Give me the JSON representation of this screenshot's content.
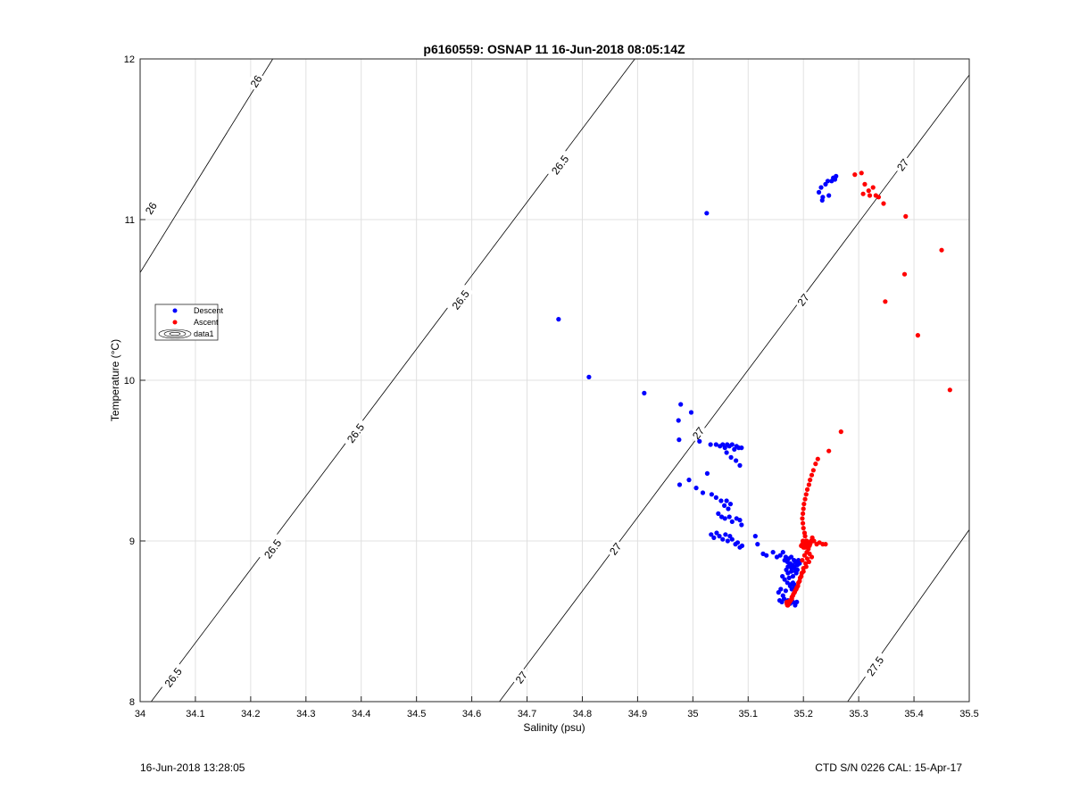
{
  "footer": {
    "timestamp": "16-Jun-2018 13:28:05",
    "serial_cal": "CTD S/N 0226  CAL: 15-Apr-17"
  },
  "chart_data": {
    "type": "scatter",
    "title": "p6160559: OSNAP 11 16-Jun-2018 08:05:14Z",
    "xlabel": "Salinity (psu)",
    "ylabel": "Temperature (°C)",
    "xlim": [
      34,
      35.5
    ],
    "ylim": [
      8,
      12
    ],
    "xticks": [
      34,
      34.1,
      34.2,
      34.3,
      34.4,
      34.5,
      34.6,
      34.7,
      34.8,
      34.9,
      35,
      35.1,
      35.2,
      35.3,
      35.4,
      35.5
    ],
    "yticks": [
      8,
      9,
      10,
      11,
      12
    ],
    "grid": true,
    "legend_position": "left-middle",
    "legend": [
      "Descent",
      "Ascent",
      "data1"
    ],
    "colors": {
      "descent": "#0000ff",
      "ascent": "#ff0000",
      "contour": "#000000",
      "grid": "#e0e0e0"
    },
    "series": [
      {
        "name": "Descent",
        "x": [
          35.025,
          34.757,
          34.812,
          34.912,
          34.978,
          34.974,
          34.997,
          34.975,
          35.012,
          35.032,
          35.042,
          35.049,
          35.054,
          35.058,
          35.062,
          35.066,
          35.071,
          35.075,
          35.079,
          35.083,
          35.088,
          35.061,
          35.069,
          35.078,
          35.085,
          34.976,
          34.993,
          35.026,
          35.006,
          35.018,
          35.034,
          35.042,
          35.051,
          35.057,
          35.061,
          35.064,
          35.068,
          35.046,
          35.052,
          35.058,
          35.066,
          35.071,
          35.079,
          35.085,
          35.088,
          35.033,
          35.038,
          35.043,
          35.048,
          35.054,
          35.059,
          35.063,
          35.067,
          35.071,
          35.077,
          35.081,
          35.085,
          35.089,
          35.113,
          35.117,
          35.127,
          35.133,
          35.145,
          35.152,
          35.158,
          35.163,
          35.166,
          35.168,
          35.171,
          35.173,
          35.176,
          35.178,
          35.181,
          35.183,
          35.186,
          35.189,
          35.191,
          35.193,
          35.169,
          35.172,
          35.175,
          35.178,
          35.181,
          35.184,
          35.187,
          35.162,
          35.166,
          35.171,
          35.174,
          35.178,
          35.155,
          35.159,
          35.163,
          35.168,
          35.157,
          35.161,
          35.165,
          35.172,
          35.176,
          35.181,
          35.185,
          35.188,
          35.172,
          35.175,
          35.179,
          35.182,
          35.186,
          35.189,
          35.176,
          35.179,
          35.183,
          35.181,
          35.184,
          35.232,
          35.228,
          35.235,
          35.24,
          35.246,
          35.251,
          35.254,
          35.257,
          35.234,
          35.244,
          35.259
        ],
        "y": [
          11.04,
          10.38,
          10.02,
          9.92,
          9.85,
          9.75,
          9.8,
          9.63,
          9.62,
          9.6,
          9.6,
          9.59,
          9.6,
          9.58,
          9.6,
          9.59,
          9.6,
          9.57,
          9.59,
          9.58,
          9.58,
          9.55,
          9.52,
          9.5,
          9.47,
          9.35,
          9.38,
          9.42,
          9.33,
          9.3,
          9.29,
          9.27,
          9.25,
          9.22,
          9.25,
          9.2,
          9.23,
          9.17,
          9.15,
          9.14,
          9.15,
          9.12,
          9.14,
          9.13,
          9.1,
          9.04,
          9.02,
          9.05,
          9.03,
          9.01,
          9.04,
          9.0,
          9.03,
          9.01,
          8.98,
          8.99,
          8.96,
          8.97,
          9.03,
          8.98,
          8.92,
          8.91,
          8.93,
          8.9,
          8.91,
          8.93,
          8.88,
          8.9,
          8.87,
          8.89,
          8.86,
          8.9,
          8.85,
          8.88,
          8.87,
          8.85,
          8.88,
          8.86,
          8.82,
          8.8,
          8.84,
          8.81,
          8.78,
          8.83,
          8.8,
          8.78,
          8.76,
          8.74,
          8.77,
          8.73,
          8.68,
          8.7,
          8.66,
          8.69,
          8.63,
          8.62,
          8.64,
          8.63,
          8.61,
          8.62,
          8.6,
          8.62,
          8.84,
          8.85,
          8.83,
          8.84,
          8.81,
          8.82,
          8.72,
          8.7,
          8.73,
          8.74,
          8.71,
          11.2,
          11.17,
          11.14,
          11.22,
          11.15,
          11.24,
          11.26,
          11.25,
          11.12,
          11.24,
          11.27
        ]
      },
      {
        "name": "Ascent",
        "x": [
          35.293,
          35.305,
          35.311,
          35.318,
          35.326,
          35.331,
          35.336,
          35.308,
          35.32,
          35.345,
          35.385,
          35.45,
          35.383,
          35.348,
          35.407,
          35.465,
          35.268,
          35.246,
          35.226,
          35.222,
          35.218,
          35.215,
          35.212,
          35.21,
          35.207,
          35.205,
          35.203,
          35.201,
          35.2,
          35.199,
          35.198,
          35.199,
          35.2,
          35.202,
          35.203,
          35.205,
          35.204,
          35.202,
          35.201,
          35.199,
          35.2,
          35.201,
          35.203,
          35.205,
          35.206,
          35.208,
          35.21,
          35.212,
          35.214,
          35.216,
          35.213,
          35.211,
          35.208,
          35.206,
          35.203,
          35.2,
          35.198,
          35.196,
          35.219,
          35.224,
          35.229,
          35.235,
          35.24,
          35.215,
          35.21,
          35.205,
          35.2,
          35.196,
          35.193,
          35.19,
          35.187,
          35.184,
          35.181,
          35.179,
          35.177,
          35.175,
          35.173,
          35.172,
          35.171,
          35.17,
          35.211,
          35.207,
          35.204,
          35.2,
          35.197,
          35.194,
          35.191,
          35.188,
          35.185,
          35.182,
          35.179,
          35.176,
          35.174,
          35.172,
          35.171,
          35.17,
          35.209,
          35.206,
          35.202,
          35.198
        ],
        "y": [
          11.28,
          11.29,
          11.22,
          11.18,
          11.2,
          11.15,
          11.14,
          11.16,
          11.15,
          11.1,
          11.02,
          10.81,
          10.66,
          10.49,
          10.28,
          9.94,
          9.68,
          9.56,
          9.51,
          9.48,
          9.44,
          9.41,
          9.38,
          9.35,
          9.32,
          9.29,
          9.26,
          9.23,
          9.2,
          9.17,
          9.14,
          9.11,
          9.08,
          9.05,
          9.03,
          9.0,
          8.98,
          8.96,
          8.98,
          9.0,
          8.97,
          8.99,
          8.96,
          8.98,
          9.0,
          8.97,
          8.99,
          8.98,
          9.0,
          9.02,
          8.99,
          8.97,
          8.99,
          8.97,
          8.98,
          8.96,
          8.98,
          8.97,
          9.0,
          8.98,
          8.99,
          8.98,
          8.98,
          8.9,
          8.87,
          8.84,
          8.81,
          8.78,
          8.75,
          8.72,
          8.7,
          8.68,
          8.66,
          8.64,
          8.63,
          8.62,
          8.61,
          8.6,
          8.62,
          8.61,
          8.92,
          8.89,
          8.86,
          8.83,
          8.8,
          8.77,
          8.74,
          8.71,
          8.69,
          8.67,
          8.65,
          8.63,
          8.62,
          8.61,
          8.6,
          8.62,
          8.95,
          8.93,
          8.91,
          8.88
        ]
      }
    ],
    "isopycnals": [
      {
        "label": "26",
        "x": [
          34.0,
          34.24
        ],
        "y": [
          10.67,
          12.0
        ],
        "label_positions": [
          [
            34.02,
            11.07
          ],
          [
            34.21,
            11.86
          ]
        ]
      },
      {
        "label": "26.5",
        "x": [
          34.02,
          34.895
        ],
        "y": [
          8.0,
          12.0
        ],
        "label_positions": [
          [
            34.06,
            8.15
          ],
          [
            34.24,
            8.95
          ],
          [
            34.39,
            9.67
          ],
          [
            34.58,
            10.5
          ],
          [
            34.76,
            11.34
          ]
        ]
      },
      {
        "label": "27",
        "x": [
          34.65,
          35.5
        ],
        "y": [
          8.0,
          11.9
        ],
        "label_positions": [
          [
            34.69,
            8.15
          ],
          [
            34.86,
            8.95
          ],
          [
            35.01,
            9.67
          ],
          [
            35.2,
            10.5
          ],
          [
            35.38,
            11.34
          ]
        ]
      },
      {
        "label": "27.5",
        "x": [
          35.28,
          35.5
        ],
        "y": [
          8.0,
          9.07
        ],
        "label_positions": [
          [
            35.33,
            8.22
          ]
        ]
      }
    ]
  }
}
